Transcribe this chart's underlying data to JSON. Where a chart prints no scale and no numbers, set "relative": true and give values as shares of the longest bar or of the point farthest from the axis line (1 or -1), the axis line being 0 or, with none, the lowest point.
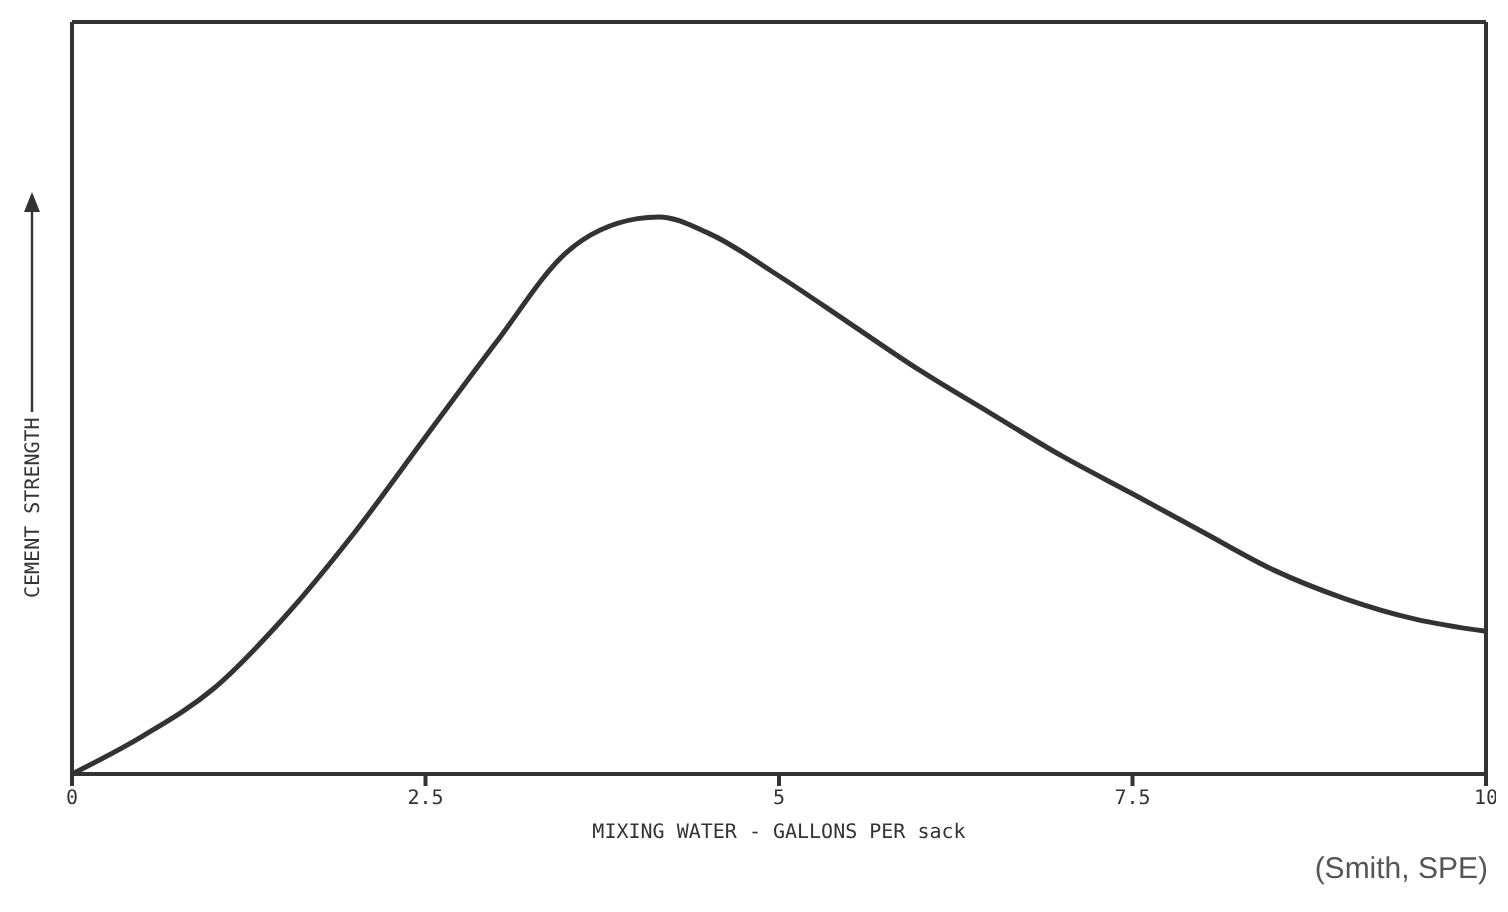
{
  "chart_data": {
    "type": "line",
    "xlabel": "MIXING WATER - GALLONS PER sack",
    "ylabel": "CEMENT STRENGTH",
    "annotations": [
      "(Smith, SPE)"
    ],
    "x": [
      0,
      0.5,
      1,
      1.5,
      2,
      2.5,
      3,
      3.5,
      4,
      4.15,
      4.5,
      5,
      5.5,
      6,
      6.5,
      7,
      7.5,
      8,
      8.5,
      9,
      9.5,
      10
    ],
    "series": [
      {
        "color": "#333333",
        "values": [
          0,
          0.068,
          0.153,
          0.281,
          0.434,
          0.605,
          0.775,
          0.937,
          0.997,
          1,
          0.971,
          0.894,
          0.809,
          0.724,
          0.647,
          0.571,
          0.503,
          0.434,
          0.366,
          0.315,
          0.278,
          0.256
        ]
      }
    ],
    "relative": true,
    "xlim": [
      0,
      10
    ],
    "xticks": [
      0,
      2.5,
      5,
      7.5,
      10
    ],
    "marker": "none",
    "line_style": "solid",
    "grid": false,
    "legend": false
  }
}
